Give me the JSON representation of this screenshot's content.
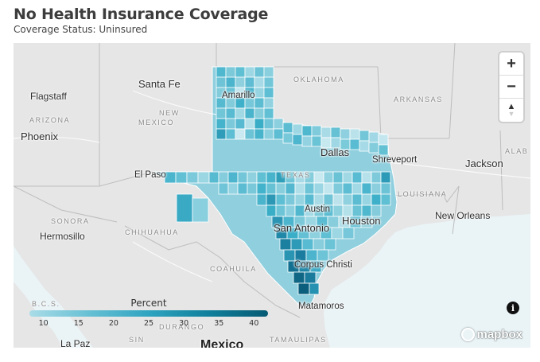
{
  "header": {
    "title": "No Health Insurance Coverage",
    "subtitle": "Coverage Status: Uninsured"
  },
  "map": {
    "labels": {
      "santa_fe": "Santa Fe",
      "flagstaff": "Flagstaff",
      "arizona": "ARIZONA",
      "new": "NEW",
      "mexico_state": "MEXICO",
      "phoenix": "Phoenix",
      "oklahoma": "OKLAHOMA",
      "arkansas": "ARKANSAS",
      "amarillo": "Amarillo",
      "dallas": "Dallas",
      "shreveport": "Shreveport",
      "jackson": "Jackson",
      "alab": "ALAB",
      "el_paso": "El Paso",
      "texas": "TEXAS",
      "louisiana": "LOUISIANA",
      "austin": "Austin",
      "houston": "Houston",
      "new_orleans": "New Orleans",
      "sonora": "SONORA",
      "hermosillo": "Hermosillo",
      "chihuahua": "CHIHUAHUA",
      "san_antonio": "San Antonio",
      "coahuila": "COAHUILA",
      "corpus_christi": "Corpus Christi",
      "bcs": "B.C.S.",
      "matamoros": "Matamoros",
      "la_paz": "La Paz",
      "sin": "SIN",
      "mexico_country": "Mexico",
      "tamaulipas": "TAMAULIPAS",
      "durango": "DURANGO"
    },
    "controls": {
      "zoom_in": "+",
      "zoom_out": "−",
      "compass": "▲"
    },
    "info_glyph": "i",
    "attribution": "mapbox",
    "colors": {
      "land": "#e6e6e6",
      "water": "#eaf4f7",
      "low": "#a9dce7",
      "high": "#065a72"
    }
  },
  "legend": {
    "title": "Percent",
    "ticks": [
      "10",
      "15",
      "20",
      "25",
      "30",
      "35",
      "40"
    ],
    "range": [
      8,
      42
    ]
  }
}
